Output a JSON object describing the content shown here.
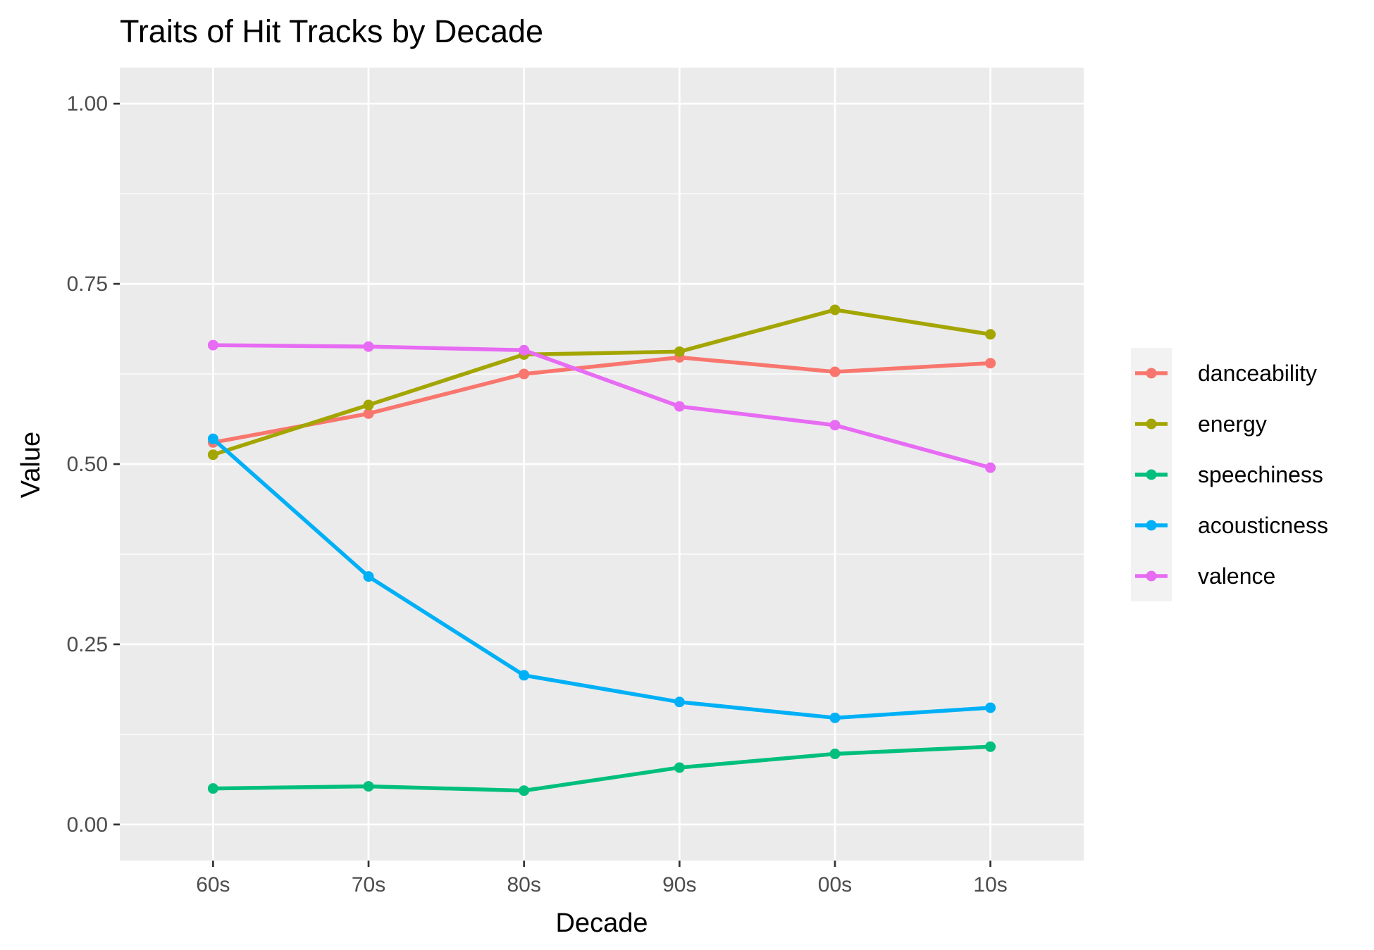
{
  "chart_data": {
    "type": "line",
    "title": "Traits of Hit Tracks by Decade",
    "xlabel": "Decade",
    "ylabel": "Value",
    "categories": [
      "60s",
      "70s",
      "80s",
      "90s",
      "00s",
      "10s"
    ],
    "ylim": [
      -0.05,
      1.05
    ],
    "yticks": [
      0.0,
      0.25,
      0.5,
      0.75,
      1.0
    ],
    "ytick_labels": [
      "0.00",
      "0.25",
      "0.50",
      "0.75",
      "1.00"
    ],
    "grid": true,
    "legend_position": "right",
    "series": [
      {
        "name": "danceability",
        "color": "#F8766D",
        "values": [
          0.53,
          0.57,
          0.625,
          0.648,
          0.628,
          0.64
        ]
      },
      {
        "name": "energy",
        "color": "#A3A500",
        "values": [
          0.513,
          0.582,
          0.652,
          0.656,
          0.714,
          0.68
        ]
      },
      {
        "name": "speechiness",
        "color": "#00BF7D",
        "values": [
          0.05,
          0.053,
          0.047,
          0.079,
          0.098,
          0.108
        ]
      },
      {
        "name": "acousticness",
        "color": "#00B0F6",
        "values": [
          0.535,
          0.344,
          0.207,
          0.17,
          0.148,
          0.162
        ]
      },
      {
        "name": "valence",
        "color": "#E76BF3",
        "values": [
          0.665,
          0.663,
          0.658,
          0.58,
          0.554,
          0.495
        ]
      }
    ]
  }
}
